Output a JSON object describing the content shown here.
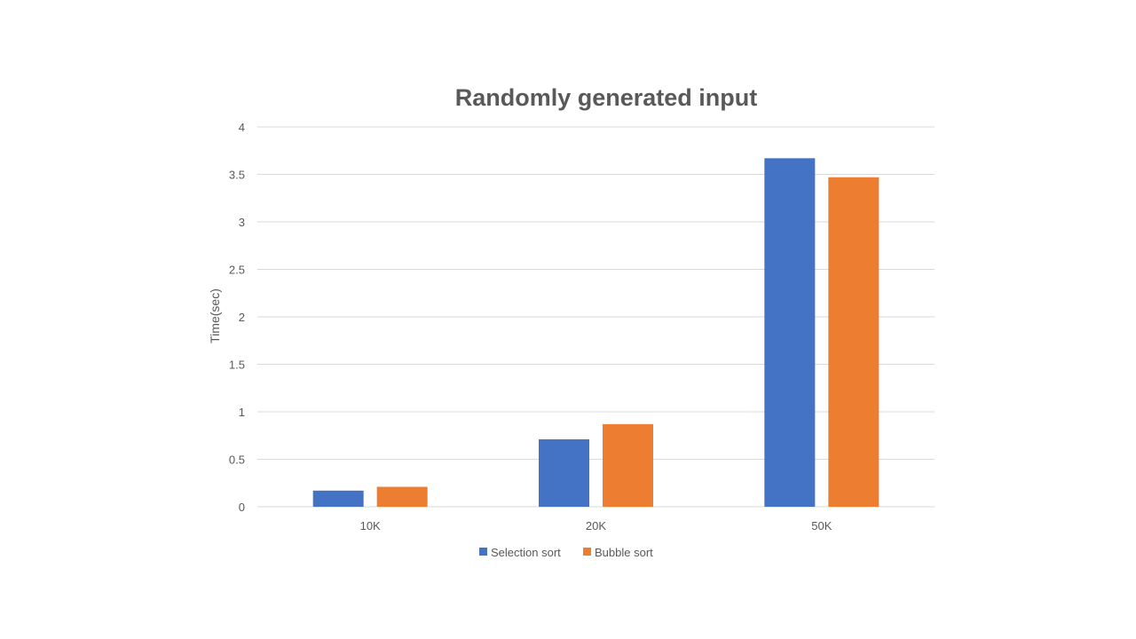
{
  "chart_data": {
    "type": "bar",
    "title": "Randomly  generated input",
    "xlabel": "",
    "ylabel": "Time(sec)",
    "categories": [
      "10K",
      "20K",
      "50K"
    ],
    "series": [
      {
        "name": "Selection sort",
        "color": "#4472c4",
        "values": [
          0.17,
          0.71,
          3.67
        ]
      },
      {
        "name": "Bubble sort",
        "color": "#ed7d31",
        "values": [
          0.21,
          0.87,
          3.47
        ]
      }
    ],
    "ylim": [
      0,
      4
    ],
    "yticks": [
      "0",
      "0.5",
      "1",
      "1.5",
      "2",
      "2.5",
      "3",
      "3.5",
      "4"
    ],
    "grid": true,
    "legend_position": "bottom"
  }
}
